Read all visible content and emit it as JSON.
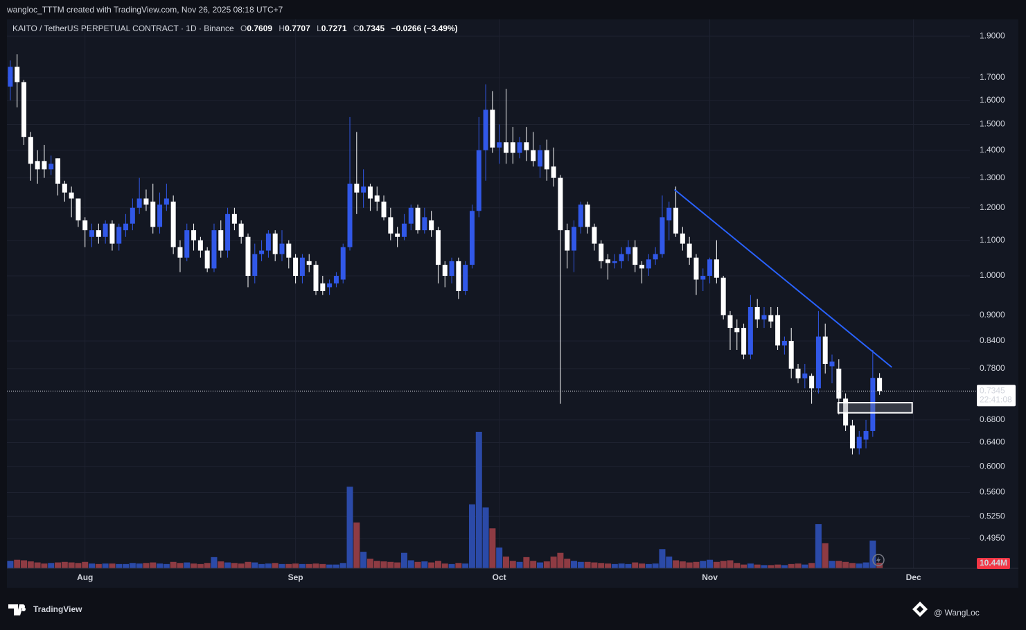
{
  "header": {
    "credit": "wangloc_TTTM created with TradingView.com, Nov 26, 2025 08:18 UTC+7"
  },
  "chart_data": {
    "type": "candlestick",
    "symbol": "KAITO / TetherUS PERPETUAL CONTRACT · 1D · Binance",
    "ohlc_labels": [
      "O",
      "H",
      "L",
      "C"
    ],
    "change": {
      "value": -0.0266,
      "label": "−0.0266"
    },
    "change_pct": {
      "value": -3.49,
      "label": "(−3.49%)"
    },
    "countdown": "22:41:08",
    "last_volume_label": "10.44M",
    "log_scale": true,
    "grid": true,
    "up_color": "#3158e8",
    "down_color": "#ffffff",
    "volume_up_color": "#2b4aa8",
    "volume_down_color": "#8e3b43",
    "x": [
      0,
      1,
      2,
      3,
      4,
      5,
      6,
      7,
      8,
      9,
      10,
      11,
      12,
      13,
      14,
      15,
      16,
      17,
      18,
      19,
      20,
      21,
      22,
      23,
      24,
      25,
      26,
      27,
      28,
      29,
      30,
      31,
      32,
      33,
      34,
      35,
      36,
      37,
      38,
      39,
      40,
      41,
      42,
      43,
      44,
      45,
      46,
      47,
      48,
      49,
      50,
      51,
      52,
      53,
      54,
      55,
      56,
      57,
      58,
      59,
      60,
      61,
      62,
      63,
      64,
      65,
      66,
      67,
      68,
      69,
      70,
      71,
      72,
      73,
      74,
      75,
      76,
      77,
      78,
      79,
      80,
      81,
      82,
      83,
      84,
      85,
      86,
      87,
      88,
      89,
      90,
      91,
      92,
      93,
      94,
      95,
      96,
      97,
      98,
      99,
      100,
      101,
      102,
      103,
      104,
      105,
      106,
      107,
      108,
      109,
      110,
      111,
      112,
      113,
      114,
      115,
      116,
      117,
      118,
      119,
      120,
      121,
      122,
      123,
      124,
      125,
      126,
      127,
      128
    ],
    "open": [
      1.66,
      1.75,
      1.68,
      1.45,
      1.36,
      1.36,
      1.33,
      1.37,
      1.28,
      1.25,
      1.23,
      1.16,
      1.11,
      1.13,
      1.11,
      1.15,
      1.09,
      1.13,
      1.15,
      1.2,
      1.23,
      1.22,
      1.14,
      1.21,
      1.22,
      1.08,
      1.05,
      1.13,
      1.1,
      1.07,
      1.02,
      1.13,
      1.07,
      1.18,
      1.15,
      1.11,
      1.0,
      1.06,
      1.07,
      1.12,
      1.06,
      1.09,
      1.05,
      1.0,
      1.04,
      1.03,
      0.98,
      0.97,
      0.98,
      0.99,
      1.08,
      1.28,
      1.25,
      1.27,
      1.24,
      1.22,
      1.17,
      1.12,
      1.11,
      1.15,
      1.2,
      1.13,
      1.16,
      1.13,
      1.03,
      1.0,
      1.04,
      0.96,
      1.03,
      1.19,
      1.4,
      1.56,
      1.41,
      1.43,
      1.43,
      1.39,
      1.43,
      1.4,
      1.34,
      1.4,
      1.34,
      1.3,
      1.13,
      1.07,
      1.14,
      1.21,
      1.14,
      1.09,
      1.045,
      1.035,
      1.04,
      1.06,
      1.08,
      1.03,
      1.02,
      1.045,
      1.06,
      1.16,
      1.2,
      1.12,
      1.09,
      1.05,
      0.99,
      1.0,
      1.045,
      0.995,
      0.9,
      0.87,
      0.87,
      0.81,
      0.92,
      0.89,
      0.9,
      0.9,
      0.83,
      0.84,
      0.78,
      0.76,
      0.765,
      0.74,
      0.85,
      0.785,
      0.78,
      0.72,
      0.67,
      0.63,
      0.645,
      0.66,
      0.7609
    ],
    "high": [
      1.78,
      1.81,
      1.69,
      1.47,
      1.4,
      1.42,
      1.38,
      1.37,
      1.29,
      1.27,
      1.23,
      1.17,
      1.15,
      1.15,
      1.16,
      1.16,
      1.15,
      1.18,
      1.23,
      1.3,
      1.26,
      1.28,
      1.25,
      1.28,
      1.24,
      1.1,
      1.15,
      1.15,
      1.11,
      1.08,
      1.15,
      1.16,
      1.2,
      1.2,
      1.16,
      1.12,
      1.09,
      1.1,
      1.13,
      1.13,
      1.13,
      1.1,
      1.06,
      1.06,
      1.06,
      1.04,
      1.0,
      0.99,
      1.01,
      1.09,
      1.53,
      1.47,
      1.33,
      1.28,
      1.27,
      1.24,
      1.2,
      1.14,
      1.18,
      1.21,
      1.21,
      1.2,
      1.19,
      1.14,
      1.04,
      1.05,
      1.05,
      1.04,
      1.21,
      1.53,
      1.67,
      1.64,
      1.5,
      1.65,
      1.49,
      1.45,
      1.49,
      1.47,
      1.42,
      1.44,
      1.41,
      1.31,
      1.15,
      1.16,
      1.22,
      1.22,
      1.15,
      1.1,
      1.06,
      1.06,
      1.08,
      1.1,
      1.1,
      1.04,
      1.06,
      1.08,
      1.24,
      1.22,
      1.27,
      1.14,
      1.11,
      1.06,
      1.02,
      1.05,
      1.1,
      1.0,
      0.91,
      0.89,
      0.88,
      0.95,
      0.94,
      0.92,
      0.92,
      0.92,
      0.85,
      0.87,
      0.79,
      0.79,
      0.77,
      0.91,
      0.88,
      0.81,
      0.8,
      0.73,
      0.68,
      0.66,
      0.68,
      0.82,
      0.7707
    ],
    "low": [
      1.6,
      1.57,
      1.42,
      1.29,
      1.28,
      1.3,
      1.31,
      1.24,
      1.22,
      1.17,
      1.14,
      1.08,
      1.08,
      1.09,
      1.09,
      1.07,
      1.07,
      1.11,
      1.13,
      1.18,
      1.19,
      1.12,
      1.12,
      1.19,
      1.06,
      1.01,
      1.04,
      1.07,
      1.05,
      1.01,
      1.01,
      1.05,
      1.05,
      1.13,
      1.09,
      0.97,
      0.98,
      1.04,
      1.05,
      1.04,
      1.04,
      1.02,
      0.98,
      0.98,
      1.01,
      0.95,
      0.95,
      0.95,
      0.97,
      0.98,
      1.07,
      1.18,
      1.2,
      1.19,
      1.19,
      1.16,
      1.1,
      1.08,
      1.1,
      1.13,
      1.12,
      1.12,
      1.11,
      0.98,
      0.97,
      0.98,
      0.94,
      0.95,
      1.02,
      1.17,
      1.29,
      1.39,
      1.35,
      1.35,
      1.35,
      1.37,
      1.36,
      1.34,
      1.3,
      1.29,
      1.27,
      0.71,
      1.02,
      1.01,
      1.12,
      1.12,
      1.07,
      1.02,
      0.99,
      1.02,
      1.02,
      1.04,
      1.01,
      0.98,
      1.0,
      1.03,
      1.05,
      1.1,
      1.11,
      1.07,
      1.03,
      0.95,
      0.96,
      0.98,
      0.98,
      0.89,
      0.82,
      0.82,
      0.8,
      0.8,
      0.87,
      0.87,
      0.87,
      0.82,
      0.81,
      0.76,
      0.75,
      0.74,
      0.71,
      0.73,
      0.77,
      0.75,
      0.69,
      0.66,
      0.62,
      0.62,
      0.63,
      0.65,
      0.7271
    ],
    "close": [
      1.75,
      1.68,
      1.45,
      1.35,
      1.33,
      1.33,
      1.35,
      1.28,
      1.25,
      1.23,
      1.16,
      1.13,
      1.13,
      1.11,
      1.15,
      1.09,
      1.14,
      1.15,
      1.2,
      1.23,
      1.21,
      1.14,
      1.21,
      1.23,
      1.08,
      1.05,
      1.13,
      1.1,
      1.07,
      1.02,
      1.13,
      1.07,
      1.18,
      1.15,
      1.11,
      1.0,
      1.06,
      1.07,
      1.12,
      1.06,
      1.09,
      1.05,
      1.0,
      1.05,
      1.03,
      0.96,
      0.96,
      0.98,
      1.0,
      1.08,
      1.28,
      1.25,
      1.27,
      1.23,
      1.22,
      1.17,
      1.12,
      1.11,
      1.15,
      1.2,
      1.13,
      1.17,
      1.13,
      1.03,
      1.0,
      1.04,
      0.96,
      1.03,
      1.19,
      1.4,
      1.56,
      1.41,
      1.43,
      1.39,
      1.39,
      1.43,
      1.4,
      1.36,
      1.4,
      1.33,
      1.3,
      1.13,
      1.07,
      1.14,
      1.21,
      1.14,
      1.09,
      1.04,
      1.035,
      1.04,
      1.06,
      1.08,
      1.03,
      1.02,
      1.045,
      1.06,
      1.17,
      1.2,
      1.12,
      1.09,
      1.05,
      0.99,
      1.0,
      1.045,
      0.995,
      0.9,
      0.87,
      0.86,
      0.81,
      0.92,
      0.89,
      0.9,
      0.885,
      0.83,
      0.84,
      0.78,
      0.76,
      0.77,
      0.74,
      0.85,
      0.79,
      0.795,
      0.72,
      0.67,
      0.63,
      0.65,
      0.66,
      0.7609,
      0.7345
    ],
    "volume": [
      14,
      16,
      15,
      13,
      11,
      9,
      10,
      11,
      12,
      11,
      10,
      12,
      9,
      8,
      9,
      9,
      8,
      8,
      10,
      9,
      10,
      11,
      9,
      8,
      12,
      10,
      11,
      9,
      8,
      10,
      21,
      13,
      11,
      10,
      9,
      12,
      11,
      8,
      9,
      10,
      8,
      8,
      9,
      8,
      8,
      9,
      8,
      7,
      7,
      10,
      153,
      86,
      31,
      18,
      14,
      13,
      12,
      11,
      29,
      15,
      12,
      13,
      11,
      14,
      9,
      8,
      10,
      9,
      120,
      256,
      114,
      75,
      39,
      22,
      14,
      12,
      21,
      14,
      11,
      13,
      22,
      29,
      18,
      14,
      12,
      12,
      11,
      10,
      9,
      8,
      9,
      8,
      11,
      9,
      8,
      9,
      36,
      22,
      15,
      13,
      11,
      12,
      14,
      16,
      12,
      14,
      15,
      10,
      7,
      9,
      7,
      6,
      6,
      7,
      6,
      8,
      9,
      7,
      10,
      83,
      47,
      14,
      14,
      12,
      10,
      9,
      11,
      52,
      10.44
    ],
    "xlim": [
      -0.5,
      141.3
    ],
    "xticks": [
      {
        "value": 11,
        "label": "Aug"
      },
      {
        "value": 42,
        "label": "Sep"
      },
      {
        "value": 72,
        "label": "Oct"
      },
      {
        "value": 103,
        "label": "Nov"
      },
      {
        "value": 133,
        "label": "Dec"
      }
    ],
    "ylim": [
      0.457,
      1.987
    ],
    "yticks": [
      {
        "value": 1.9,
        "label": "1.9000"
      },
      {
        "value": 1.7,
        "label": "1.7000"
      },
      {
        "value": 1.6,
        "label": "1.6000"
      },
      {
        "value": 1.5,
        "label": "1.5000"
      },
      {
        "value": 1.4,
        "label": "1.4000"
      },
      {
        "value": 1.3,
        "label": "1.3000"
      },
      {
        "value": 1.2,
        "label": "1.2000"
      },
      {
        "value": 1.1,
        "label": "1.1000"
      },
      {
        "value": 1.0,
        "label": "1.0000"
      },
      {
        "value": 0.9,
        "label": "0.9000"
      },
      {
        "value": 0.84,
        "label": "0.8400"
      },
      {
        "value": 0.78,
        "label": "0.7800"
      },
      {
        "value": 0.68,
        "label": "0.6800"
      },
      {
        "value": 0.64,
        "label": "0.6400"
      },
      {
        "value": 0.6,
        "label": "0.6000"
      },
      {
        "value": 0.56,
        "label": "0.5600"
      },
      {
        "value": 0.525,
        "label": "0.5250"
      },
      {
        "value": 0.495,
        "label": "0.4950"
      }
    ],
    "trendline": {
      "x": [
        97.8,
        129.8
      ],
      "y": [
        1.26,
        0.783
      ],
      "color": "#2962ff"
    },
    "zone": {
      "x": [
        121.9,
        132.8
      ],
      "y": [
        0.693,
        0.712
      ]
    }
  },
  "footer": {
    "brand": "TradingView",
    "watermark": "@ WangLoc"
  }
}
